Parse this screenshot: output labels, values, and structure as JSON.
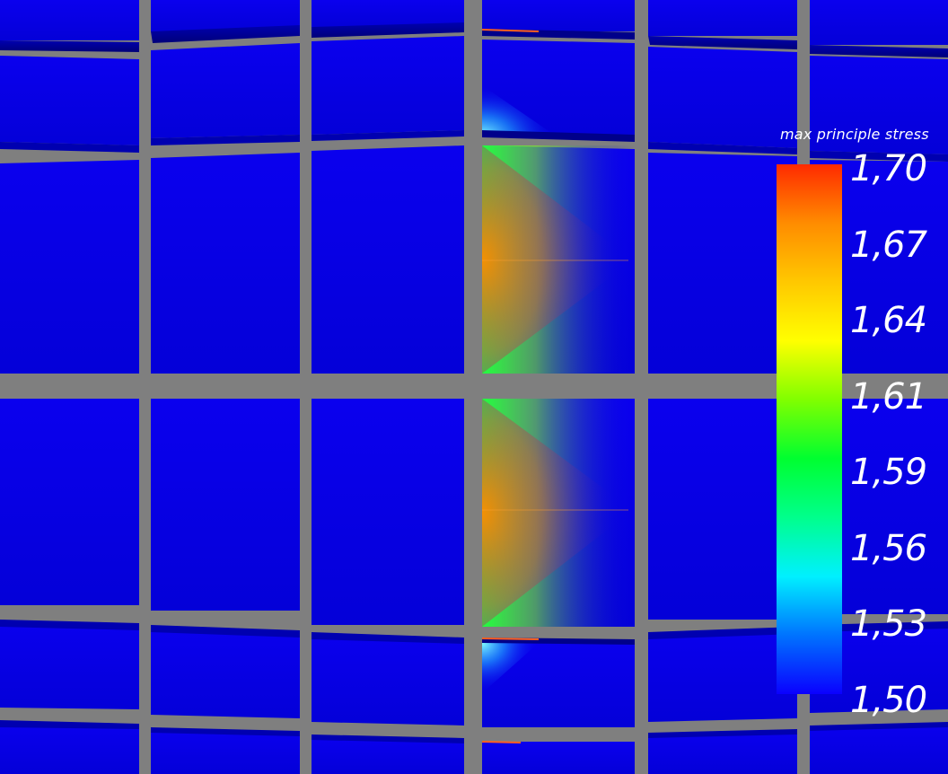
{
  "colors": {
    "background_frame": "#7f7f7f",
    "low": "#0000f0",
    "high": "#ff2a00"
  },
  "legend": {
    "title": "max principle stress",
    "min": 1.5,
    "max": 1.7,
    "labels": [
      "1,70",
      "1,67",
      "1,64",
      "1,61",
      "1,59",
      "1,56",
      "1,53",
      "1,50"
    ],
    "colormap": [
      "#0a00ff",
      "#0073ff",
      "#00f0ff",
      "#00ff8c",
      "#00ff30",
      "#80ff00",
      "#ffff00",
      "#ffc800",
      "#ff8c00",
      "#ff2a00"
    ]
  }
}
